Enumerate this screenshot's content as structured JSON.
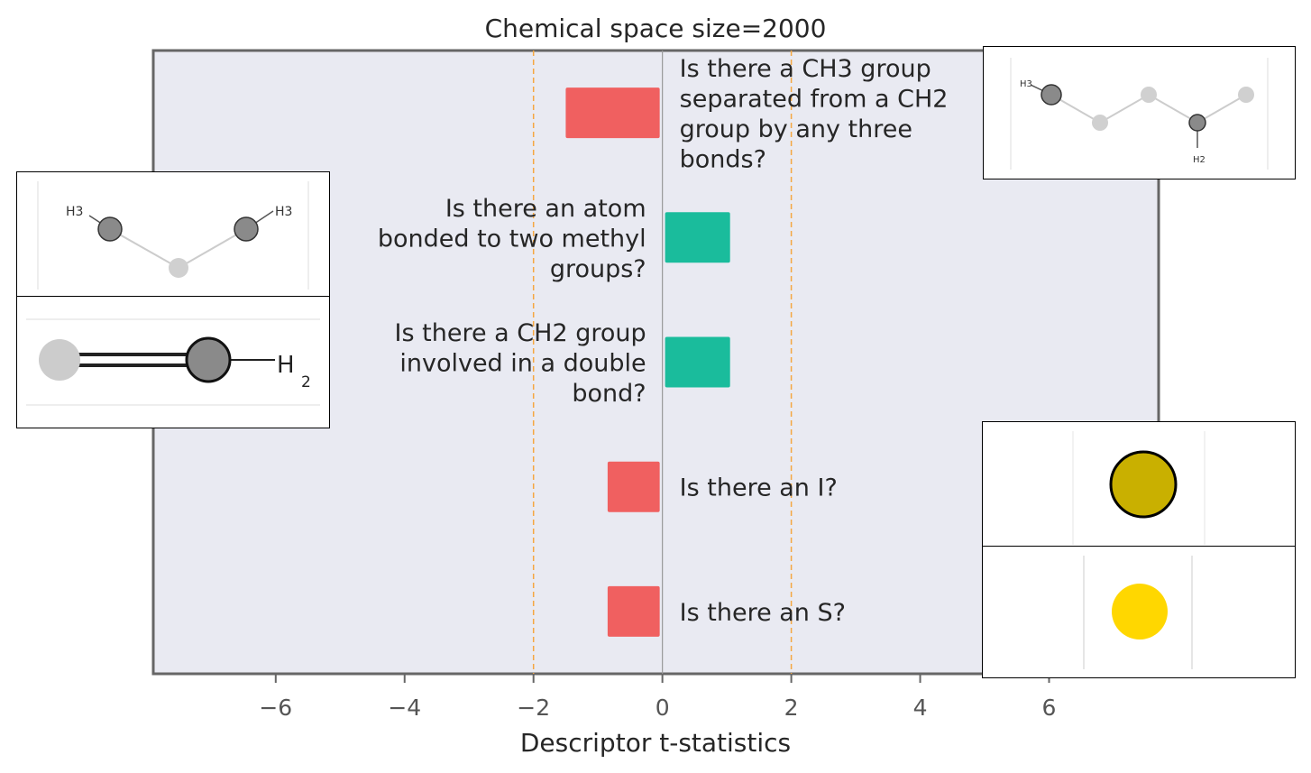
{
  "chart_data": {
    "type": "bar",
    "orientation": "horizontal",
    "title": "Chemical space size=2000",
    "xlabel": "Descriptor t-statistics",
    "ylabel": "",
    "xlim": [
      -7.9,
      7.7
    ],
    "xticks": [
      -6,
      -4,
      -2,
      0,
      2,
      4,
      6
    ],
    "xtick_labels": [
      "−6",
      "−4",
      "−2",
      "0",
      "2",
      "4",
      "6"
    ],
    "threshold_lines": [
      -2,
      2
    ],
    "grid": false,
    "categories": [
      "Is there a CH3 group separated from a CH2 group by any three bonds?",
      "Is there an atom bonded to two methyl groups?",
      "Is there a CH2 group involved in a double bond?",
      "Is there an I?",
      "Is there an S?"
    ],
    "values": [
      -1.5,
      1.05,
      1.05,
      -0.85,
      -0.85
    ],
    "label_lines": [
      [
        "Is there a CH3 group",
        "separated from a CH2",
        "group by any three",
        "bonds?"
      ],
      [
        "Is there an atom",
        "bonded to two methyl",
        "groups?"
      ],
      [
        "Is there a CH2 group",
        "involved in a double",
        "bond?"
      ],
      [
        "Is there an I?"
      ],
      [
        "Is there an S?"
      ]
    ]
  },
  "colors": {
    "positive": "#1abc9c",
    "negative": "#f06060",
    "threshold": "#f5a742",
    "plot_background": "#e9eaf2",
    "frame": "#666666",
    "zero_line": "#999999"
  },
  "insets": {
    "top_right": {
      "labels": [
        "H3",
        "H2"
      ]
    },
    "left_upper": {
      "labels": [
        "H3",
        "H3"
      ]
    },
    "left_lower": {
      "labels": [
        "H",
        "2"
      ]
    },
    "right_upper": {},
    "right_lower": {}
  }
}
